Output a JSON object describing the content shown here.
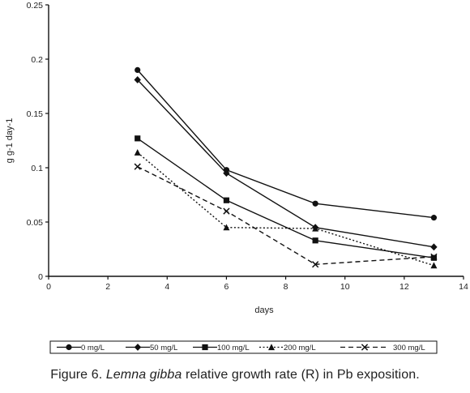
{
  "chart_data": {
    "type": "line",
    "xlabel": "days",
    "ylabel": "g g-1 day-1",
    "xlim": [
      0,
      14
    ],
    "ylim": [
      0,
      0.25
    ],
    "x_ticks": [
      "0",
      "2",
      "4",
      "6",
      "8",
      "10",
      "12",
      "14"
    ],
    "y_ticks": [
      "0",
      "0.05",
      "0.1",
      "0.15",
      "0.2",
      "0.25"
    ],
    "grid": false,
    "legend_position": "bottom",
    "x": [
      3,
      6,
      9,
      13
    ],
    "series": [
      {
        "name": "0 mg/L",
        "marker": "circle",
        "line": "solid",
        "values": [
          0.19,
          0.098,
          0.067,
          0.054
        ]
      },
      {
        "name": "50 mg/L",
        "marker": "diamond",
        "line": "solid",
        "values": [
          0.181,
          0.095,
          0.045,
          0.027
        ]
      },
      {
        "name": "100 mg/L",
        "marker": "square",
        "line": "solid",
        "values": [
          0.127,
          0.07,
          0.033,
          0.017
        ]
      },
      {
        "name": "200 mg/L",
        "marker": "triangle",
        "line": "dotted",
        "values": [
          0.114,
          0.045,
          0.044,
          0.01
        ]
      },
      {
        "name": "300 mg/L",
        "marker": "cross",
        "line": "dashed",
        "values": [
          0.101,
          0.06,
          0.011,
          0.018
        ]
      }
    ]
  },
  "caption": {
    "prefix": "Figure 6. ",
    "species": "Lemna gibba",
    "suffix": " relative growth rate (R) in Pb exposition."
  }
}
